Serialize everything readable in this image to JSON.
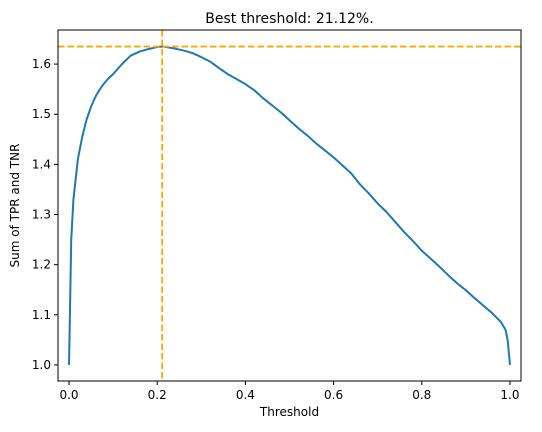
{
  "chart_data": {
    "type": "line",
    "title": "Best threshold: 21.12%.",
    "xlabel": "Threshold",
    "ylabel": "Sum of TPR and TNR",
    "xlim": [
      -0.025,
      1.025
    ],
    "ylim": [
      0.968,
      1.668
    ],
    "x_ticks": [
      0.0,
      0.2,
      0.4,
      0.6,
      0.8,
      1.0
    ],
    "x_tick_labels": [
      "0.0",
      "0.2",
      "0.4",
      "0.6",
      "0.8",
      "1.0"
    ],
    "y_ticks": [
      1.0,
      1.1,
      1.2,
      1.3,
      1.4,
      1.5,
      1.6
    ],
    "y_tick_labels": [
      "1.0",
      "1.1",
      "1.2",
      "1.3",
      "1.4",
      "1.5",
      "1.6"
    ],
    "grid": false,
    "series": [
      {
        "color": "#1f77b4",
        "x": [
          0.0,
          0.002,
          0.005,
          0.01,
          0.015,
          0.02,
          0.03,
          0.04,
          0.05,
          0.06,
          0.07,
          0.08,
          0.09,
          0.1,
          0.12,
          0.14,
          0.16,
          0.18,
          0.2,
          0.2112,
          0.22,
          0.24,
          0.26,
          0.28,
          0.3,
          0.32,
          0.34,
          0.36,
          0.38,
          0.4,
          0.42,
          0.44,
          0.46,
          0.48,
          0.5,
          0.52,
          0.54,
          0.56,
          0.58,
          0.6,
          0.62,
          0.64,
          0.66,
          0.68,
          0.7,
          0.72,
          0.74,
          0.76,
          0.78,
          0.8,
          0.82,
          0.84,
          0.86,
          0.88,
          0.9,
          0.92,
          0.94,
          0.96,
          0.98,
          0.99,
          0.995,
          1.0
        ],
        "y": [
          1.0,
          1.1,
          1.25,
          1.33,
          1.37,
          1.41,
          1.455,
          1.49,
          1.515,
          1.535,
          1.55,
          1.562,
          1.572,
          1.58,
          1.6,
          1.617,
          1.625,
          1.63,
          1.634,
          1.635,
          1.634,
          1.631,
          1.627,
          1.622,
          1.614,
          1.605,
          1.592,
          1.58,
          1.57,
          1.56,
          1.548,
          1.532,
          1.518,
          1.504,
          1.488,
          1.472,
          1.458,
          1.442,
          1.428,
          1.414,
          1.398,
          1.382,
          1.36,
          1.342,
          1.322,
          1.305,
          1.285,
          1.265,
          1.247,
          1.228,
          1.212,
          1.196,
          1.179,
          1.163,
          1.149,
          1.133,
          1.118,
          1.103,
          1.085,
          1.07,
          1.048,
          1.0
        ]
      }
    ],
    "reference_lines": [
      {
        "orientation": "vertical",
        "value": 0.2112,
        "color": "#ffa500",
        "style": "dashed"
      },
      {
        "orientation": "horizontal",
        "value": 1.635,
        "color": "#ffa500",
        "style": "dashed"
      }
    ]
  }
}
